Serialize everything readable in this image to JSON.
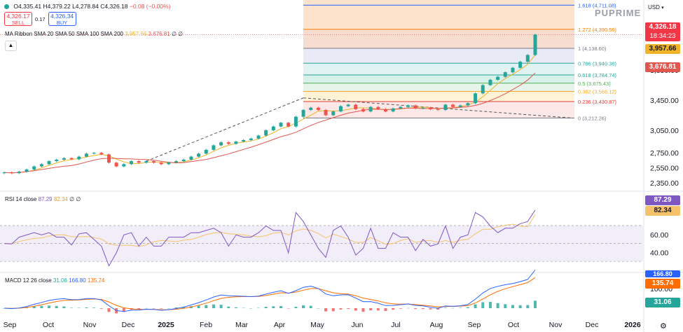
{
  "symbol_bar": {
    "open": "O4,335.41",
    "high": "H4,379.22",
    "low": "L4,278.84",
    "close": "C4,326.18",
    "change": "−0.08 (−0.00%)"
  },
  "trade": {
    "sell_price": "4,326.17",
    "sell_label": "SELL",
    "spread": "0.17",
    "buy_price": "4,326.34",
    "buy_label": "BUY"
  },
  "currency": "USD",
  "brand": "PUPRIME",
  "legends": {
    "ma": {
      "label": "MA Ribbon SMA 20 SMA 50 SMA 100 SMA 200",
      "v1": "3,957.66",
      "v2": "3,676.81",
      "v3": "∅",
      "v4": "∅"
    },
    "rsi": {
      "label": "RSI 14 close",
      "v1": "87.29",
      "v2": "82.34",
      "v3": "∅",
      "v4": "∅"
    },
    "macd": {
      "label": "MACD 12 26 close",
      "v1": "31.06",
      "v2": "166.80",
      "v3": "135.74"
    }
  },
  "price_labels": {
    "last": "4,326.18",
    "countdown": "18:34:23",
    "sma20": "3,957.66",
    "sma50": "3,676.81",
    "rsi": "87.29",
    "rsi_ma": "82.34",
    "macd_top": "166.80",
    "macd_signal": "135.74",
    "macd_hist": "31.06"
  },
  "colors": {
    "up": "#26a69a",
    "down": "#ef5350",
    "sma20": "#f0b429",
    "sma50": "#e0574f",
    "rsi": "#7e57c2",
    "rsi_ma": "#f5c26b",
    "macd": "#2962ff",
    "signal": "#ff6d00",
    "fib_line": "#2962ff"
  },
  "chart_data": {
    "type": "candlestick",
    "x_ticks": [
      "Sep",
      "Oct",
      "Nov",
      "Dec",
      "2025",
      "Feb",
      "Mar",
      "Apr",
      "May",
      "Jun",
      "Jul",
      "Aug",
      "Sep",
      "Oct",
      "Nov",
      "Dec",
      "2026"
    ],
    "price_axis": {
      "ticks": [
        "2,350.00",
        "2,550.00",
        "2,750.00",
        "3,050.00",
        "3,450.00",
        "3,850.00"
      ],
      "tick_values": [
        2350,
        2550,
        2750,
        3050,
        3450,
        3850
      ],
      "ylim": [
        2250,
        4780
      ]
    },
    "closes": [
      2490,
      2480,
      2500,
      2530,
      2570,
      2600,
      2640,
      2660,
      2680,
      2665,
      2700,
      2740,
      2750,
      2730,
      2620,
      2570,
      2600,
      2640,
      2620,
      2640,
      2620,
      2600,
      2620,
      2640,
      2660,
      2700,
      2740,
      2790,
      2850,
      2890,
      2870,
      2900,
      2920,
      2940,
      2980,
      3050,
      3100,
      3150,
      3100,
      3230,
      3320,
      3350,
      3320,
      3250,
      3300,
      3370,
      3390,
      3330,
      3300,
      3360,
      3330,
      3300,
      3340,
      3360,
      3380,
      3340,
      3350,
      3330,
      3320,
      3390,
      3360,
      3380,
      3410,
      3540,
      3650,
      3720,
      3760,
      3820,
      3880,
      3960,
      4050,
      4320
    ],
    "fibonacci": {
      "levels": [
        {
          "label": "1.618 (4,711.08)",
          "value": 4711.08
        },
        {
          "label": "1.272 (4,390.56)",
          "value": 4390.56
        },
        {
          "label": "1 (4,138.60)",
          "value": 4138.6
        },
        {
          "label": "0.786 (3,940.36)",
          "value": 3940.36
        },
        {
          "label": "0.618 (3,784.74)",
          "value": 3784.74
        },
        {
          "label": "0.5 (3,675.43)",
          "value": 3675.43
        },
        {
          "label": "0.382 (3,566.12)",
          "value": 3566.12
        },
        {
          "label": "0.236 (3,430.87)",
          "value": 3430.87
        },
        {
          "label": "0 (3,212.26)",
          "value": 3212.26
        }
      ]
    },
    "rsi": {
      "ticks": [
        "60.00",
        "40.00"
      ],
      "tick_values": [
        60,
        40
      ],
      "bands": [
        70,
        50,
        30
      ],
      "last": 87.29,
      "ma_last": 82.34
    },
    "macd": {
      "ticks": [
        "100.00"
      ],
      "macd_last": 166.8,
      "signal_last": 135.74,
      "hist_last": 31.06
    }
  }
}
